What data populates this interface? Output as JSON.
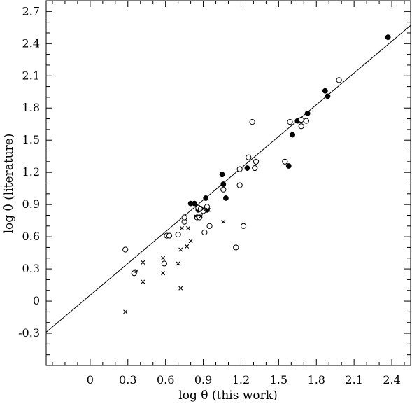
{
  "chart_data": {
    "type": "scatter",
    "title": "",
    "xlabel": "log θ (this work)",
    "ylabel": "log θ (literature)",
    "xlim": [
      -0.35,
      2.55
    ],
    "ylim": [
      -0.6,
      2.8
    ],
    "xticks": [
      0,
      0.3,
      0.6,
      0.9,
      1.2,
      1.5,
      1.8,
      2.1,
      2.4
    ],
    "xtick_labels": [
      "0",
      "0.3",
      "0.6",
      "0.9",
      "1.2",
      "1.5",
      "1.8",
      "2.1",
      "2.4"
    ],
    "yticks": [
      -0.3,
      0,
      0.3,
      0.6,
      0.9,
      1.2,
      1.5,
      1.8,
      2.1,
      2.4,
      2.7
    ],
    "ytick_labels": [
      "-0.3",
      "0",
      "0.3",
      "0.6",
      "0.9",
      "1.2",
      "1.5",
      "1.8",
      "2.1",
      "2.4",
      "2.7"
    ],
    "grid": false,
    "legend": "none",
    "fit_line": {
      "x": [
        -0.35,
        2.55
      ],
      "y": [
        -0.29,
        2.57
      ]
    },
    "series": [
      {
        "marker": "filled-circle",
        "x": [
          0.8,
          0.83,
          0.86,
          0.92,
          1.05,
          1.06,
          1.08,
          1.25,
          1.58,
          1.61,
          1.65,
          1.73,
          1.87,
          1.89,
          2.37,
          0.93
        ],
        "y": [
          0.91,
          0.91,
          0.85,
          0.96,
          1.18,
          1.09,
          0.96,
          1.24,
          1.26,
          1.55,
          1.68,
          1.75,
          1.96,
          1.91,
          2.46,
          0.85
        ]
      },
      {
        "marker": "open-circle",
        "x": [
          0.28,
          0.35,
          0.59,
          0.61,
          0.63,
          0.7,
          0.75,
          0.75,
          0.85,
          0.86,
          0.87,
          0.88,
          0.9,
          0.91,
          0.93,
          0.95,
          1.06,
          1.16,
          1.19,
          1.19,
          1.22,
          1.26,
          1.29,
          1.31,
          1.32,
          1.55,
          1.59,
          1.68,
          1.68,
          1.72,
          1.98
        ],
        "y": [
          0.48,
          0.26,
          0.35,
          0.61,
          0.61,
          0.62,
          0.74,
          0.78,
          0.78,
          0.87,
          0.78,
          0.86,
          0.84,
          0.64,
          0.88,
          0.7,
          1.04,
          0.5,
          1.08,
          1.23,
          0.7,
          1.34,
          1.67,
          1.24,
          1.3,
          1.3,
          1.67,
          1.69,
          1.63,
          1.68,
          2.06
        ]
      },
      {
        "marker": "cross",
        "x": [
          0.28,
          0.37,
          0.42,
          0.42,
          0.58,
          0.58,
          0.7,
          0.72,
          0.72,
          0.73,
          0.77,
          0.78,
          0.8,
          0.84,
          0.88,
          0.9,
          0.94,
          1.06
        ],
        "y": [
          -0.1,
          0.28,
          0.18,
          0.36,
          0.26,
          0.4,
          0.35,
          0.48,
          0.12,
          0.68,
          0.51,
          0.68,
          0.56,
          0.79,
          0.79,
          0.86,
          0.85,
          0.74
        ]
      }
    ]
  }
}
